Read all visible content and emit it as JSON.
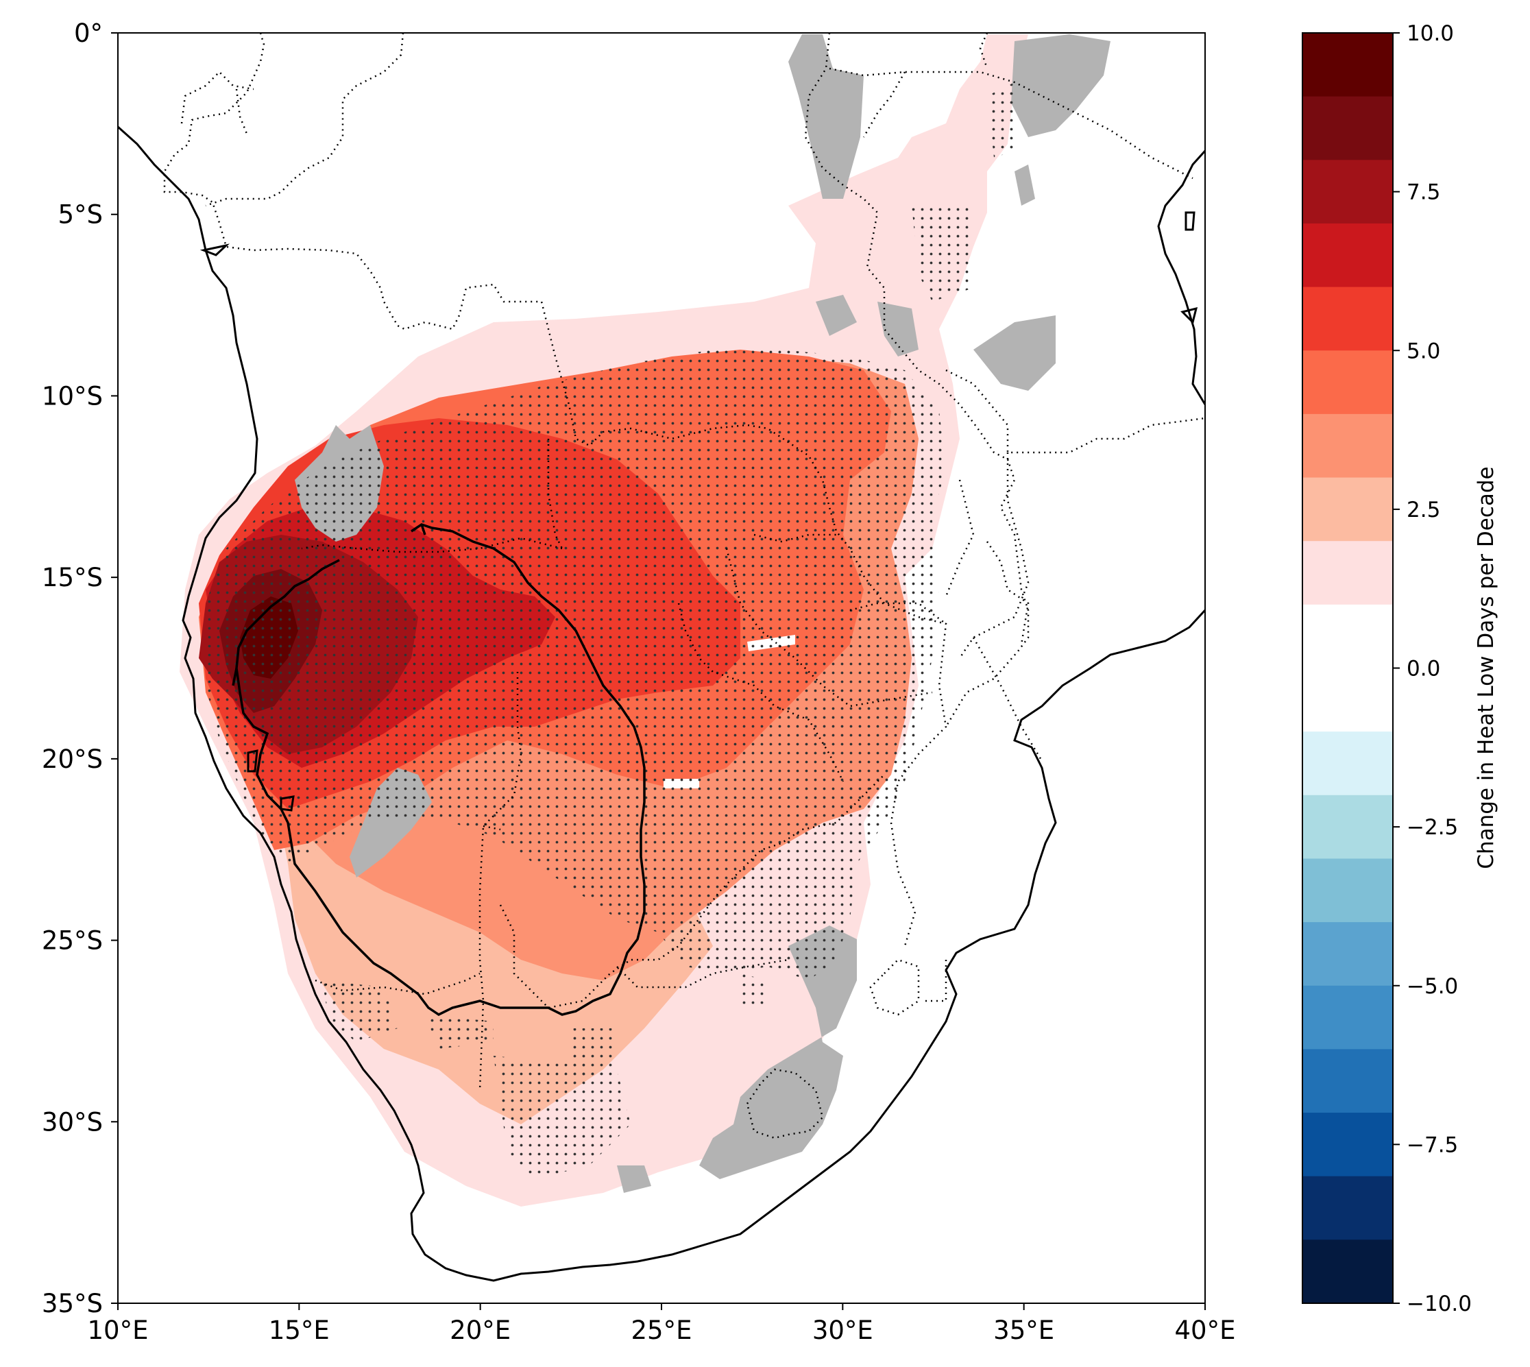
{
  "map": {
    "lon_range": [
      10,
      40
    ],
    "lat_range": [
      -35,
      0
    ],
    "x_ticks": [
      {
        "lon": 10,
        "label": "10°E"
      },
      {
        "lon": 15,
        "label": "15°E"
      },
      {
        "lon": 20,
        "label": "20°E"
      },
      {
        "lon": 25,
        "label": "25°E"
      },
      {
        "lon": 30,
        "label": "30°E"
      },
      {
        "lon": 35,
        "label": "35°E"
      },
      {
        "lon": 40,
        "label": "40°E"
      }
    ],
    "y_ticks": [
      {
        "lat": 0,
        "label": "0°"
      },
      {
        "lat": -5,
        "label": "5°S"
      },
      {
        "lat": -10,
        "label": "10°S"
      },
      {
        "lat": -15,
        "label": "15°S"
      },
      {
        "lat": -20,
        "label": "20°S"
      },
      {
        "lat": -25,
        "label": "25°S"
      },
      {
        "lat": -30,
        "label": "30°S"
      },
      {
        "lat": -35,
        "label": "35°S"
      }
    ],
    "masked_color": "#b3b3b3",
    "stipple_color": "#333333"
  },
  "colorbar": {
    "label": "Change in Heat Low Days per Decade",
    "vmin": -10,
    "vmax": 10,
    "ticks": [
      {
        "value": 10,
        "label": "10.0"
      },
      {
        "value": 7.5,
        "label": "7.5"
      },
      {
        "value": 5,
        "label": "5.0"
      },
      {
        "value": 2.5,
        "label": "2.5"
      },
      {
        "value": 0,
        "label": "0.0"
      },
      {
        "value": -2.5,
        "label": "−2.5"
      },
      {
        "value": -5,
        "label": "−5.0"
      },
      {
        "value": -7.5,
        "label": "−7.5"
      },
      {
        "value": -10,
        "label": "−10.0"
      }
    ],
    "colors_top_to_bottom": [
      "#5f0000",
      "#770b10",
      "#a11218",
      "#cb181d",
      "#ef3b2c",
      "#fb6a4a",
      "#fc9272",
      "#fcbba1",
      "#fee0e0",
      "#ffffff",
      "#ffffff",
      "#d9f2f9",
      "#abdbe3",
      "#7fbfd6",
      "#5ba3cf",
      "#3f8ec6",
      "#2171b5",
      "#08519c",
      "#072f6b",
      "#041a40"
    ]
  }
}
